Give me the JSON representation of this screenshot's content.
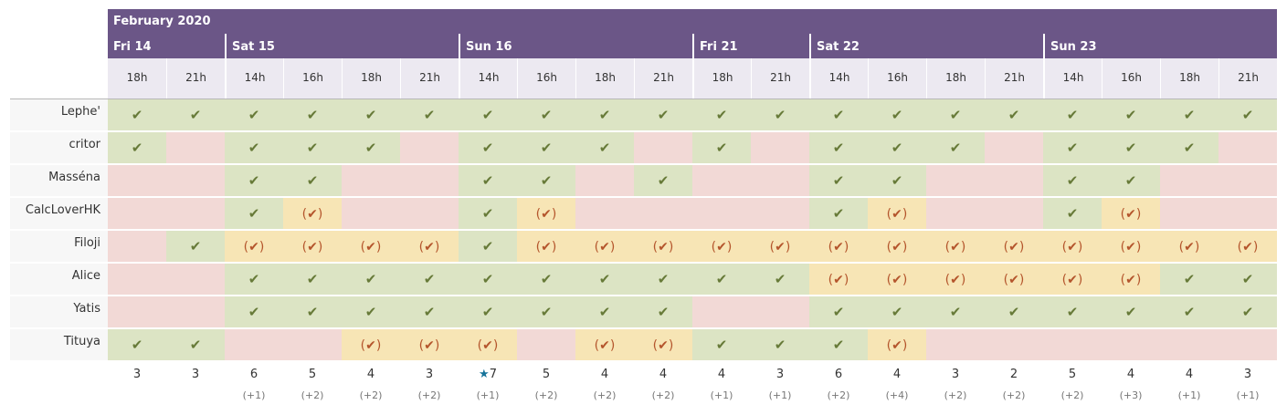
{
  "month": "February 2020",
  "days": [
    {
      "label": "Fri 14",
      "span": 2
    },
    {
      "label": "Sat 15",
      "span": 4
    },
    {
      "label": "Sun 16",
      "span": 4
    },
    {
      "label": "Fri 21",
      "span": 2
    },
    {
      "label": "Sat 22",
      "span": 4
    },
    {
      "label": "Sun 23",
      "span": 4
    }
  ],
  "hours": [
    "18h",
    "21h",
    "14h",
    "16h",
    "18h",
    "21h",
    "14h",
    "16h",
    "18h",
    "21h",
    "18h",
    "21h",
    "14h",
    "16h",
    "18h",
    "21h",
    "14h",
    "16h",
    "18h",
    "21h"
  ],
  "participants": [
    {
      "name": "Lephe'",
      "votes": [
        "y",
        "y",
        "y",
        "y",
        "y",
        "y",
        "y",
        "y",
        "y",
        "y",
        "y",
        "y",
        "y",
        "y",
        "y",
        "y",
        "y",
        "y",
        "y",
        "y"
      ]
    },
    {
      "name": "critor",
      "votes": [
        "y",
        "n",
        "y",
        "y",
        "y",
        "n",
        "y",
        "y",
        "y",
        "n",
        "y",
        "n",
        "y",
        "y",
        "y",
        "n",
        "y",
        "y",
        "y",
        "n"
      ]
    },
    {
      "name": "Masséna",
      "votes": [
        "n",
        "n",
        "y",
        "y",
        "n",
        "n",
        "y",
        "y",
        "n",
        "y",
        "n",
        "n",
        "y",
        "y",
        "n",
        "n",
        "y",
        "y",
        "n",
        "n"
      ]
    },
    {
      "name": "CalcLoverHK",
      "votes": [
        "n",
        "n",
        "y",
        "m",
        "n",
        "n",
        "y",
        "m",
        "n",
        "n",
        "n",
        "n",
        "y",
        "m",
        "n",
        "n",
        "y",
        "m",
        "n",
        "n"
      ]
    },
    {
      "name": "Filoji",
      "votes": [
        "n",
        "y",
        "m",
        "m",
        "m",
        "m",
        "y",
        "m",
        "m",
        "m",
        "m",
        "m",
        "m",
        "m",
        "m",
        "m",
        "m",
        "m",
        "m",
        "m"
      ]
    },
    {
      "name": "Alice",
      "votes": [
        "n",
        "n",
        "y",
        "y",
        "y",
        "y",
        "y",
        "y",
        "y",
        "y",
        "y",
        "y",
        "m",
        "m",
        "m",
        "m",
        "m",
        "m",
        "y",
        "y"
      ]
    },
    {
      "name": "Yatis",
      "votes": [
        "n",
        "n",
        "y",
        "y",
        "y",
        "y",
        "y",
        "y",
        "y",
        "y",
        "n",
        "n",
        "y",
        "y",
        "y",
        "y",
        "y",
        "y",
        "y",
        "y"
      ]
    },
    {
      "name": "Tituya",
      "votes": [
        "y",
        "y",
        "n",
        "n",
        "m",
        "m",
        "m",
        "n",
        "m",
        "m",
        "y",
        "y",
        "y",
        "m",
        "n",
        "n",
        "n",
        "n",
        "n",
        "n"
      ]
    }
  ],
  "totals": [
    "3",
    "3",
    "6",
    "5",
    "4",
    "3",
    "7",
    "5",
    "4",
    "4",
    "4",
    "3",
    "6",
    "4",
    "3",
    "2",
    "5",
    "4",
    "4",
    "3"
  ],
  "extras": [
    "",
    "",
    "(+1)",
    "(+2)",
    "(+2)",
    "(+2)",
    "(+1)",
    "(+2)",
    "(+2)",
    "(+2)",
    "(+1)",
    "(+1)",
    "(+2)",
    "(+4)",
    "(+2)",
    "(+2)",
    "(+2)",
    "(+3)",
    "(+1)",
    "(+1)"
  ],
  "best_index": 6,
  "symbols": {
    "yes": "✔",
    "maybe": "(✔)",
    "star": "★"
  }
}
